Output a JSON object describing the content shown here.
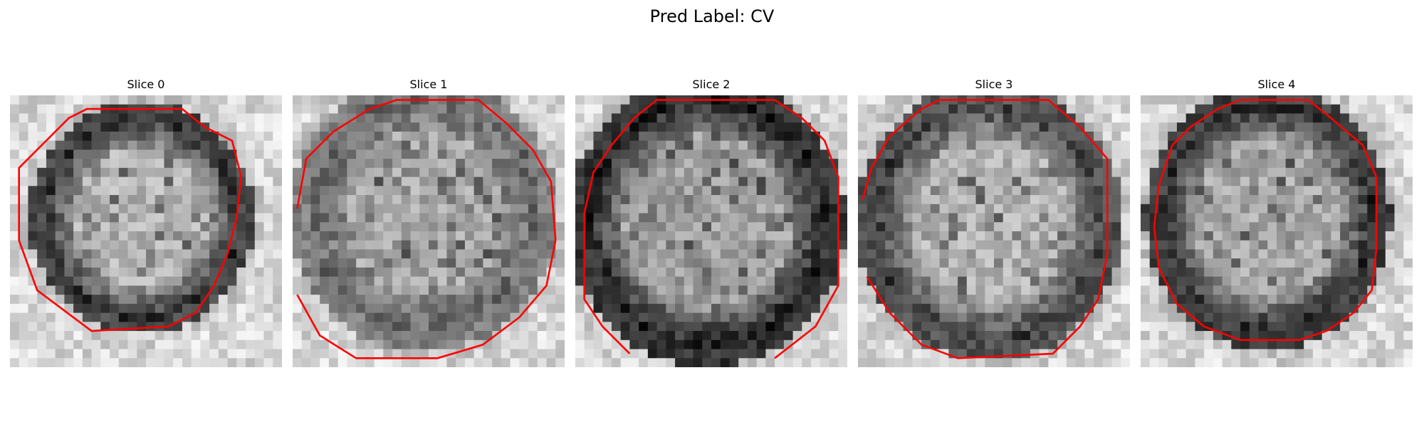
{
  "figure": {
    "suptitle": "Pred Label: CV"
  },
  "panels": [
    {
      "title": "Slice 0",
      "seed": 11,
      "bright_center": 0.82,
      "dark_ring": 0.18
    },
    {
      "title": "Slice 1",
      "seed": 23,
      "bright_center": 0.78,
      "dark_ring": 0.4
    },
    {
      "title": "Slice 2",
      "seed": 37,
      "bright_center": 0.75,
      "dark_ring": 0.1
    },
    {
      "title": "Slice 3",
      "seed": 41,
      "bright_center": 0.82,
      "dark_ring": 0.22
    },
    {
      "title": "Slice 4",
      "seed": 53,
      "bright_center": 0.78,
      "dark_ring": 0.15
    }
  ],
  "colors": {
    "contour": "#ff0000",
    "background": "#ffffff"
  }
}
